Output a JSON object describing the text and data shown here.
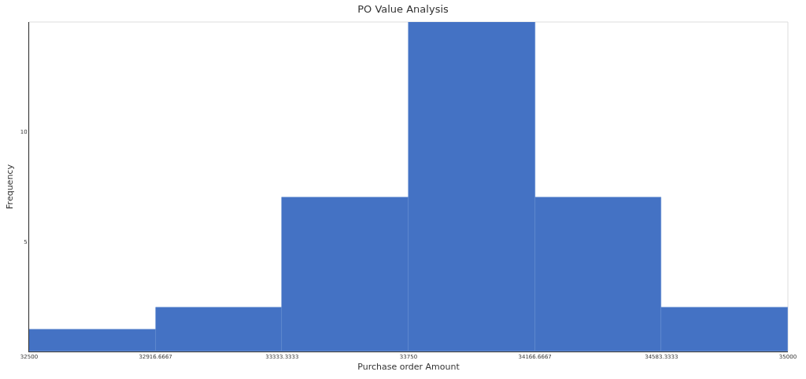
{
  "chart_data": {
    "type": "histogram",
    "title": "PO Value Analysis",
    "xlabel": "Purchase order Amount",
    "ylabel": "Frequency",
    "bins": [
      32500,
      32916.6667,
      33333.3333,
      33750,
      34166.6667,
      34583.3333,
      35000
    ],
    "values": [
      1,
      2,
      7,
      15,
      7,
      2
    ],
    "color": "#4472c4",
    "xlim": [
      32500,
      35000
    ],
    "xticks": [
      32500,
      32916.6667,
      33333.3333,
      33750,
      34166.6667,
      34583.3333,
      35000
    ],
    "ylim": [
      0,
      15
    ],
    "yticks": [
      5,
      10
    ],
    "grid": false
  }
}
